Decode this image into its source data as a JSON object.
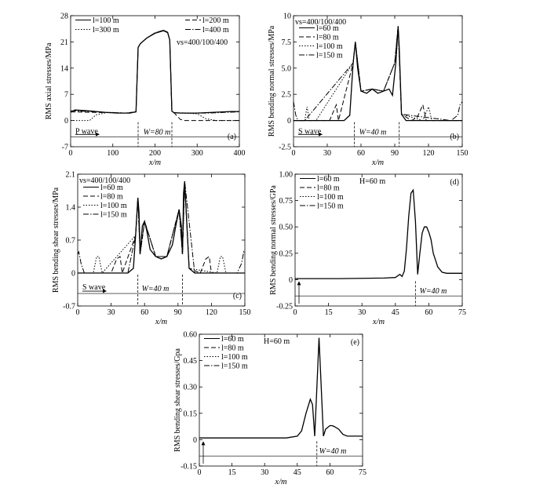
{
  "chart_data": [
    {
      "type": "line",
      "panel_label": "(a)",
      "ylabel": "RMS axial stresses/MPa",
      "xlabel": "x/m",
      "xlim": [
        0,
        400
      ],
      "ylim": [
        -7,
        28
      ],
      "xticks": [
        "0",
        "100",
        "200",
        "300",
        "400"
      ],
      "yticks": [
        "-7",
        "0",
        "7",
        "14",
        "21",
        "28"
      ],
      "legend": [
        "l=100 m",
        "l=200 m",
        "l=300 m",
        "l=400 m"
      ],
      "annotation": "vs=400/100/400",
      "wave_label": "P wave",
      "width_label": "W=80 m",
      "series": [
        {
          "name": "l=100 m",
          "style": "solid",
          "x": [
            0,
            10,
            40,
            80,
            110,
            140,
            155,
            160,
            165,
            180,
            200,
            220,
            230,
            235,
            240,
            245,
            260,
            300,
            340,
            380,
            400
          ],
          "y": [
            2.2,
            2.8,
            2.6,
            2.2,
            2.0,
            2.0,
            2.3,
            19.5,
            20.5,
            22.0,
            23.3,
            24.0,
            23.5,
            21.5,
            2.5,
            2.1,
            2.0,
            2.0,
            2.2,
            2.4,
            2.4
          ]
        },
        {
          "name": "l=200 m",
          "style": "dashed",
          "x": [
            0,
            140,
            155,
            160,
            165,
            180,
            200,
            220,
            230,
            235,
            240,
            245,
            260,
            270,
            278,
            400
          ],
          "y": [
            2.3,
            2.0,
            2.3,
            19.5,
            20.5,
            22.0,
            23.4,
            24.1,
            23.6,
            21.5,
            2.5,
            2.1,
            0.3,
            0,
            0,
            0
          ]
        },
        {
          "name": "l=300 m",
          "style": "dotted",
          "x": [
            0,
            20,
            45,
            60,
            90,
            130,
            155,
            160,
            165,
            180,
            200,
            220,
            230,
            235,
            240,
            245,
            260,
            300,
            320,
            345,
            400
          ],
          "y": [
            0,
            0,
            0,
            1.5,
            2.2,
            2.0,
            2.3,
            19.5,
            20.5,
            22.0,
            23.4,
            24.1,
            23.6,
            21.5,
            2.5,
            2.1,
            2.0,
            1.8,
            0.5,
            0,
            0
          ]
        },
        {
          "name": "l=400 m",
          "style": "dashdot",
          "x": [
            0,
            30,
            80,
            130,
            155,
            160,
            165,
            180,
            200,
            220,
            230,
            235,
            240,
            245,
            280,
            330,
            370,
            400
          ],
          "y": [
            2.6,
            2.5,
            2.2,
            2.0,
            2.3,
            19.5,
            20.5,
            22.0,
            23.4,
            24.1,
            23.6,
            21.5,
            2.5,
            2.1,
            2.0,
            2.0,
            2.2,
            2.3
          ]
        }
      ]
    },
    {
      "type": "line",
      "panel_label": "(b)",
      "ylabel": "RMS bending normal stresses/MPa",
      "xlabel": "x/m",
      "xlim": [
        0,
        150
      ],
      "ylim": [
        -2.5,
        10
      ],
      "xticks": [
        "0",
        "30",
        "60",
        "90",
        "120",
        "150"
      ],
      "yticks": [
        "-2.5",
        "0",
        "2.5",
        "5.0",
        "7.5",
        "10"
      ],
      "legend": [
        "l=60 m",
        "l=80 m",
        "l=100 m",
        "l=150 m"
      ],
      "annotation": "vs=400/100/400",
      "wave_label": "S wave",
      "width_label": "W=40 m",
      "series": [
        {
          "name": "l=60 m",
          "style": "solid",
          "x": [
            0,
            45,
            50,
            53,
            55,
            57,
            60,
            65,
            70,
            75,
            80,
            85,
            88,
            91,
            93,
            94,
            96,
            100,
            105,
            110,
            150
          ],
          "y": [
            0,
            0,
            0.5,
            5.5,
            7.5,
            5.0,
            2.8,
            2.6,
            3.0,
            2.6,
            2.8,
            3.0,
            2.4,
            5.5,
            9.0,
            7.0,
            0.6,
            0,
            0,
            0,
            0
          ]
        },
        {
          "name": "l=80 m",
          "style": "dashed",
          "x": [
            0,
            25,
            32,
            38,
            40,
            53,
            55,
            60,
            70,
            80,
            90,
            93,
            96,
            105,
            110,
            115,
            118,
            120,
            150
          ],
          "y": [
            0,
            0,
            0,
            1.5,
            0,
            5.5,
            7.5,
            2.8,
            3.0,
            2.8,
            5.5,
            9.0,
            0.6,
            0,
            0.3,
            1.5,
            0,
            0,
            0
          ]
        },
        {
          "name": "l=100 m",
          "style": "dotted",
          "x": [
            0,
            10,
            12,
            14,
            16,
            20,
            53,
            55,
            60,
            70,
            80,
            90,
            93,
            96,
            115,
            120,
            123,
            126,
            150
          ],
          "y": [
            0,
            0,
            1.3,
            0,
            0,
            0,
            5.5,
            7.5,
            2.8,
            3.0,
            2.8,
            5.5,
            9.0,
            0.6,
            0,
            1.3,
            0,
            0,
            0
          ]
        },
        {
          "name": "l=150 m",
          "style": "dashdot",
          "x": [
            0,
            2,
            4,
            10,
            53,
            55,
            60,
            70,
            80,
            90,
            93,
            96,
            140,
            146,
            148,
            150
          ],
          "y": [
            1.8,
            0.5,
            0,
            0,
            5.5,
            7.5,
            2.8,
            3.0,
            2.8,
            5.5,
            9.0,
            0.6,
            0,
            0.5,
            1.5,
            1.8
          ]
        }
      ]
    },
    {
      "type": "line",
      "panel_label": "(c)",
      "ylabel": "RMS bending shear stresses/MPa",
      "xlabel": "x/m",
      "xlim": [
        0,
        150
      ],
      "ylim": [
        -0.7,
        2.1
      ],
      "xticks": [
        "0",
        "30",
        "60",
        "90",
        "120",
        "150"
      ],
      "yticks": [
        "-0.7",
        "0",
        "0.7",
        "1.4",
        "2.1"
      ],
      "legend": [
        "l=60 m",
        "l=80 m",
        "l=100 m",
        "l=150 m"
      ],
      "annotation": "vs=400/100/400",
      "wave_label": "S wave",
      "width_label": "W=40 m",
      "series": [
        {
          "name": "l=60 m",
          "style": "solid",
          "x": [
            0,
            45,
            50,
            52,
            54,
            55,
            56,
            58,
            60,
            62,
            65,
            70,
            75,
            80,
            85,
            88,
            91,
            93,
            94,
            95,
            96,
            98,
            100,
            105,
            150
          ],
          "y": [
            0,
            0,
            0.1,
            0.8,
            1.6,
            1.3,
            0.4,
            1.0,
            1.1,
            0.9,
            0.5,
            0.35,
            0.3,
            0.35,
            0.6,
            1.0,
            1.35,
            1.0,
            0.4,
            1.7,
            1.95,
            1.0,
            0.1,
            0,
            0
          ]
        },
        {
          "name": "l=80 m",
          "style": "dashed",
          "x": [
            0,
            30,
            35,
            38,
            40,
            52,
            54,
            56,
            60,
            70,
            80,
            91,
            94,
            96,
            100,
            110,
            115,
            118,
            120,
            150
          ],
          "y": [
            0,
            0,
            0.3,
            0.35,
            0,
            0.8,
            1.6,
            0.4,
            1.1,
            0.35,
            0.35,
            1.35,
            0.4,
            1.95,
            0.1,
            0,
            0.3,
            0.35,
            0,
            0
          ]
        },
        {
          "name": "l=100 m",
          "style": "dotted",
          "x": [
            0,
            14,
            17,
            19,
            22,
            52,
            54,
            56,
            60,
            70,
            80,
            91,
            94,
            96,
            100,
            125,
            128,
            130,
            133,
            150
          ],
          "y": [
            0,
            0,
            0.35,
            0.35,
            0,
            0.8,
            1.6,
            0.4,
            1.1,
            0.35,
            0.35,
            1.35,
            0.4,
            1.95,
            0.1,
            0,
            0.35,
            0.35,
            0,
            0
          ]
        },
        {
          "name": "l=150 m",
          "style": "dashdot",
          "x": [
            0,
            1,
            3,
            6,
            45,
            52,
            54,
            56,
            60,
            70,
            80,
            91,
            94,
            96,
            105,
            143,
            147,
            149,
            150
          ],
          "y": [
            0.4,
            0.45,
            0.2,
            0,
            0,
            0.8,
            1.6,
            0.4,
            1.1,
            0.35,
            0.35,
            1.35,
            0.4,
            1.95,
            0,
            0,
            0.2,
            0.45,
            0.4
          ]
        }
      ]
    },
    {
      "type": "line",
      "panel_label": "(d)",
      "ylabel": "RMS bending normal stresses/GPa",
      "xlabel": "x/m",
      "xlim": [
        0,
        75
      ],
      "ylim": [
        -0.25,
        1.0
      ],
      "xticks": [
        "0",
        "15",
        "30",
        "45",
        "60",
        "75"
      ],
      "yticks": [
        "-0.25",
        "0",
        "0.25",
        "0.50",
        "0.75",
        "1.00"
      ],
      "legend": [
        "l=60 m",
        "l=80 m",
        "l=100 m",
        "l=150 m"
      ],
      "annotation": "H=60 m",
      "width_label": "W=40 m",
      "series": [
        {
          "name": "l=60 m",
          "style": "solid",
          "x": [
            0,
            20,
            40,
            45,
            47,
            48,
            49,
            50,
            51,
            52,
            53,
            54,
            55,
            56,
            57,
            58,
            59,
            60,
            61,
            62,
            64,
            66,
            68,
            70,
            75
          ],
          "y": [
            0.01,
            0.01,
            0.015,
            0.02,
            0.05,
            0.03,
            0.08,
            0.3,
            0.6,
            0.82,
            0.85,
            0.55,
            0.05,
            0.25,
            0.44,
            0.5,
            0.5,
            0.45,
            0.38,
            0.25,
            0.12,
            0.07,
            0.06,
            0.06,
            0.06
          ]
        }
      ]
    },
    {
      "type": "line",
      "panel_label": "(e)",
      "ylabel": "RMS bending shear stresses/Gpa",
      "xlabel": "x/m",
      "xlim": [
        0,
        75
      ],
      "ylim": [
        -0.15,
        0.6
      ],
      "xticks": [
        "0",
        "15",
        "30",
        "45",
        "60",
        "75"
      ],
      "yticks": [
        "-0.15",
        "0",
        "0.15",
        "0.30",
        "0.45",
        "0.60"
      ],
      "legend": [
        "l=60 m",
        "l=80 m",
        "l=100 m",
        "l=150 m"
      ],
      "annotation": "H=60 m",
      "width_label": "W=40 m",
      "series": [
        {
          "name": "l=60 m",
          "style": "solid",
          "x": [
            0,
            20,
            40,
            45,
            47,
            49,
            51,
            52,
            53,
            54,
            55,
            56,
            57,
            58,
            59,
            60,
            61,
            62,
            64,
            66,
            68,
            70,
            75
          ],
          "y": [
            0.01,
            0.01,
            0.01,
            0.02,
            0.05,
            0.15,
            0.23,
            0.2,
            0.02,
            0.3,
            0.58,
            0.3,
            0.02,
            0.06,
            0.07,
            0.08,
            0.08,
            0.075,
            0.06,
            0.03,
            0.02,
            0.02,
            0.02
          ]
        }
      ]
    }
  ]
}
